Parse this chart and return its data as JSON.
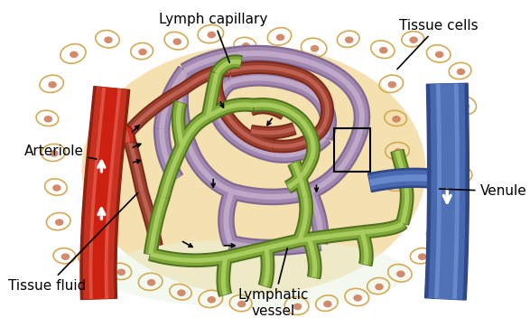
{
  "background_color": "#ffffff",
  "labels": {
    "lymph_capillary": "Lymph capillary",
    "arteriole": "Arteriole",
    "tissue_fluid": "Tissue fluid",
    "lymphatic_vessel": "Lymphatic\nvessel",
    "tissue_cells": "Tissue cells",
    "venule": "Venule"
  },
  "colors": {
    "bg_oval": "#f5e0b0",
    "cell_outline": "#d4aa55",
    "cell_nucleus": "#cc7755",
    "lymph_cap_main": "#a088b0",
    "lymph_cap_dark": "#806890",
    "lymph_cap_light": "#c0a8c8",
    "blood_cap_main": "#9a4030",
    "blood_cap_dark": "#7a2818",
    "blood_cap_light": "#c06050",
    "lymph_ves_main": "#80a838",
    "lymph_ves_dark": "#507020",
    "lymph_ves_light": "#a8cc60",
    "arteriole_main": "#c83020",
    "arteriole_dark": "#902010",
    "arteriole_light": "#e05040",
    "arteriole_inner": "#d04030",
    "venule_main": "#4868b0",
    "venule_dark": "#304888",
    "venule_light": "#6888cc",
    "venule_inner": "#3858a0",
    "arrow_col": "#111111"
  },
  "figsize": [
    5.87,
    3.62
  ],
  "dpi": 100
}
